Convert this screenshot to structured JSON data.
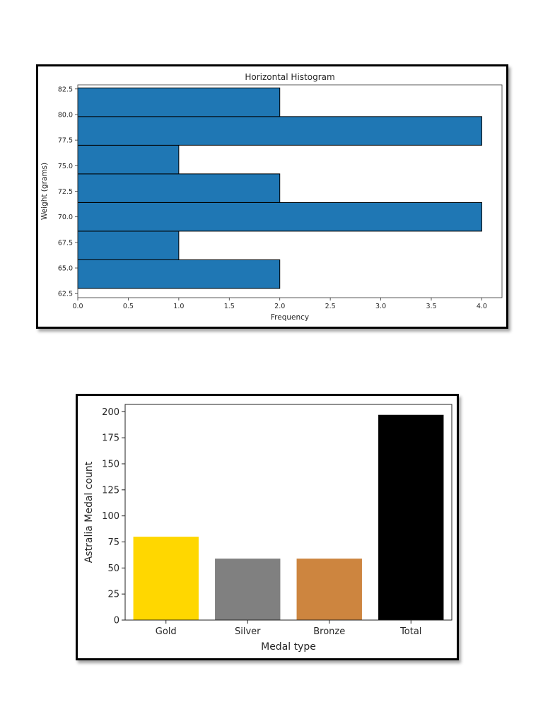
{
  "chart_data": [
    {
      "type": "bar",
      "orientation": "horizontal",
      "title": "Horizontal Histogram",
      "xlabel": "Frequency",
      "ylabel": "Weight (grams)",
      "xlim": [
        0,
        4.2
      ],
      "ylim": [
        62.1,
        82.9
      ],
      "x_ticks": [
        "0.0",
        "0.5",
        "1.0",
        "1.5",
        "2.0",
        "2.5",
        "3.0",
        "3.5",
        "4.0"
      ],
      "x_tick_values": [
        0,
        0.5,
        1,
        1.5,
        2,
        2.5,
        3,
        3.5,
        4
      ],
      "y_ticks": [
        "62.5",
        "65.0",
        "67.5",
        "70.0",
        "72.5",
        "75.0",
        "77.5",
        "80.0",
        "82.5"
      ],
      "y_tick_values": [
        62.5,
        65,
        67.5,
        70,
        72.5,
        75,
        77.5,
        80,
        82.5
      ],
      "bins": [
        {
          "from": 63.0,
          "to": 65.8,
          "value": 2
        },
        {
          "from": 65.8,
          "to": 68.6,
          "value": 1
        },
        {
          "from": 68.6,
          "to": 71.4,
          "value": 4
        },
        {
          "from": 71.4,
          "to": 74.2,
          "value": 2
        },
        {
          "from": 74.2,
          "to": 77.0,
          "value": 1
        },
        {
          "from": 77.0,
          "to": 79.8,
          "value": 4
        },
        {
          "from": 79.8,
          "to": 82.6,
          "value": 2
        }
      ],
      "bar_color": "#1f77b4",
      "edge_color": "#000000",
      "grid": false
    },
    {
      "type": "bar",
      "title": "",
      "xlabel": "Medal type",
      "ylabel": "Astralia Medal count",
      "categories": [
        "Gold",
        "Silver",
        "Bronze",
        "Total"
      ],
      "values": [
        80,
        59,
        59,
        197
      ],
      "colors": [
        "#ffd700",
        "#808080",
        "#cd853f",
        "#000000"
      ],
      "ylim": [
        0,
        207
      ],
      "y_ticks": [
        "0",
        "25",
        "50",
        "75",
        "100",
        "125",
        "150",
        "175",
        "200"
      ],
      "y_tick_values": [
        0,
        25,
        50,
        75,
        100,
        125,
        150,
        175,
        200
      ],
      "grid": false
    }
  ]
}
